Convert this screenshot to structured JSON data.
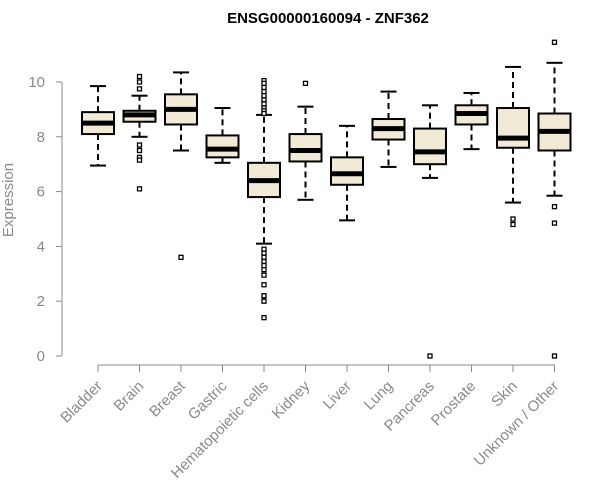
{
  "chart_data": {
    "type": "boxplot",
    "title": "ENSG00000160094 - ZNF362",
    "ylabel": "Expression",
    "xlabel": "",
    "ylim": [
      0,
      11.5
    ],
    "yticks": [
      0,
      2,
      4,
      6,
      8,
      10
    ],
    "grid": false,
    "legend": "none",
    "box_fill": "#f0ead6",
    "categories": [
      "Bladder",
      "Brain",
      "Breast",
      "Gastric",
      "Hematopoietic cells",
      "Kidney",
      "Liver",
      "Lung",
      "Pancreas",
      "Prostate",
      "Skin",
      "Unknown / Other"
    ],
    "boxes": [
      {
        "min": 6.95,
        "q1": 8.1,
        "median": 8.5,
        "q3": 8.9,
        "max": 9.85,
        "outliers": []
      },
      {
        "min": 8.0,
        "q1": 8.55,
        "median": 8.8,
        "q3": 8.95,
        "max": 9.5,
        "outliers": [
          10.2,
          10.0,
          9.75,
          7.7,
          7.5,
          7.25,
          7.15,
          6.1
        ]
      },
      {
        "min": 7.5,
        "q1": 8.45,
        "median": 9.0,
        "q3": 9.55,
        "max": 10.35,
        "outliers": [
          3.6
        ]
      },
      {
        "min": 7.05,
        "q1": 7.25,
        "median": 7.55,
        "q3": 8.05,
        "max": 9.05,
        "outliers": []
      },
      {
        "min": 4.1,
        "q1": 5.8,
        "median": 6.4,
        "q3": 7.05,
        "max": 8.8,
        "outliers": [
          10.05,
          9.95,
          9.8,
          9.65,
          9.5,
          9.35,
          9.2,
          9.05,
          8.95,
          8.85,
          3.9,
          3.75,
          3.6,
          3.45,
          3.3,
          3.15,
          2.95,
          2.6,
          2.2,
          2.0,
          1.4
        ]
      },
      {
        "min": 5.7,
        "q1": 7.1,
        "median": 7.5,
        "q3": 8.1,
        "max": 9.1,
        "outliers": [
          9.95
        ]
      },
      {
        "min": 4.95,
        "q1": 6.25,
        "median": 6.65,
        "q3": 7.25,
        "max": 8.4,
        "outliers": []
      },
      {
        "min": 6.9,
        "q1": 7.9,
        "median": 8.3,
        "q3": 8.65,
        "max": 9.65,
        "outliers": []
      },
      {
        "min": 6.5,
        "q1": 7.0,
        "median": 7.45,
        "q3": 8.3,
        "max": 9.15,
        "outliers": [
          0.0
        ]
      },
      {
        "min": 7.55,
        "q1": 8.45,
        "median": 8.85,
        "q3": 9.15,
        "max": 9.6,
        "outliers": []
      },
      {
        "min": 5.6,
        "q1": 7.6,
        "median": 7.95,
        "q3": 9.05,
        "max": 10.55,
        "outliers": [
          5.0,
          4.8
        ]
      },
      {
        "min": 5.85,
        "q1": 7.5,
        "median": 8.2,
        "q3": 8.85,
        "max": 10.7,
        "outliers": [
          11.45,
          5.45,
          4.85,
          0.0
        ]
      }
    ]
  }
}
